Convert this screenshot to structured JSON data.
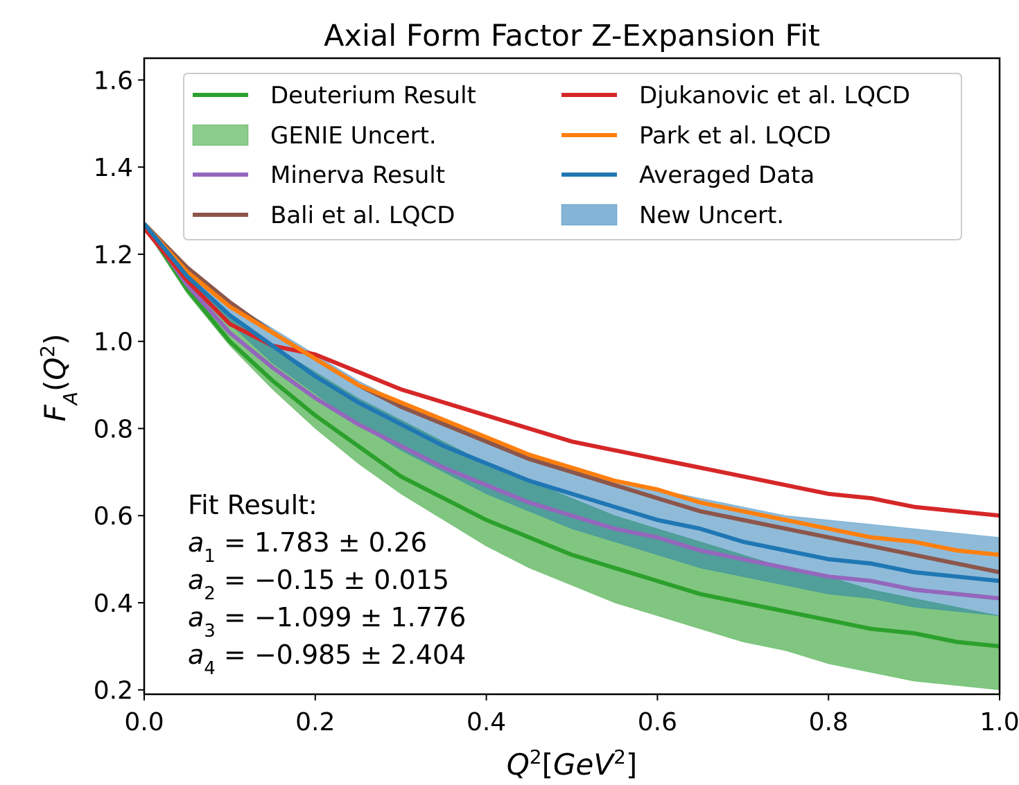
{
  "chart_data": {
    "type": "line",
    "title": "Axial Form Factor Z-Expansion Fit",
    "xlabel": {
      "base": "Q",
      "sup": "2",
      "bracket_open": "[",
      "unit_base": "GeV",
      "unit_sup": "2",
      "bracket_close": "]"
    },
    "ylabel": {
      "base": "F",
      "sub": "A",
      "open": "(",
      "arg": "Q",
      "sup": "2",
      "close": ")"
    },
    "xlim": [
      0.0,
      1.0
    ],
    "ylim": [
      0.19,
      1.65
    ],
    "xticks": [
      0.0,
      0.2,
      0.4,
      0.6,
      0.8,
      1.0
    ],
    "xtick_labels": [
      "0.0",
      "0.2",
      "0.4",
      "0.6",
      "0.8",
      "1.0"
    ],
    "yticks": [
      0.2,
      0.4,
      0.6,
      0.8,
      1.0,
      1.2,
      1.4,
      1.6
    ],
    "ytick_labels": [
      "0.2",
      "0.4",
      "0.6",
      "0.8",
      "1.0",
      "1.2",
      "1.4",
      "1.6"
    ],
    "grid": false,
    "legend_position": "top",
    "x": [
      0.0,
      0.05,
      0.1,
      0.15,
      0.2,
      0.25,
      0.3,
      0.35,
      0.4,
      0.45,
      0.5,
      0.55,
      0.6,
      0.65,
      0.7,
      0.75,
      0.8,
      0.85,
      0.9,
      0.95,
      1.0
    ],
    "bands": [
      {
        "name": "GENIE Uncert.",
        "color": "#2ca02c",
        "opacity": 0.6,
        "upper": [
          1.27,
          1.14,
          1.06,
          0.99,
          0.93,
          0.87,
          0.82,
          0.77,
          0.72,
          0.68,
          0.64,
          0.6,
          0.57,
          0.54,
          0.51,
          0.48,
          0.46,
          0.43,
          0.41,
          0.39,
          0.37
        ],
        "lower": [
          1.26,
          1.11,
          0.99,
          0.89,
          0.8,
          0.72,
          0.65,
          0.59,
          0.53,
          0.48,
          0.44,
          0.4,
          0.37,
          0.34,
          0.31,
          0.29,
          0.26,
          0.24,
          0.22,
          0.21,
          0.2
        ]
      },
      {
        "name": "New Uncert.",
        "color": "#1f77b4",
        "opacity": 0.5,
        "upper": [
          1.27,
          1.17,
          1.09,
          1.03,
          0.97,
          0.91,
          0.86,
          0.82,
          0.78,
          0.74,
          0.71,
          0.68,
          0.66,
          0.64,
          0.62,
          0.6,
          0.59,
          0.58,
          0.57,
          0.56,
          0.55
        ],
        "lower": [
          1.27,
          1.14,
          1.04,
          0.95,
          0.88,
          0.81,
          0.75,
          0.7,
          0.65,
          0.61,
          0.57,
          0.54,
          0.51,
          0.48,
          0.46,
          0.44,
          0.42,
          0.41,
          0.39,
          0.38,
          0.37
        ]
      }
    ],
    "series": [
      {
        "name": "Deuterium Result",
        "color": "#2ca02c",
        "values": [
          1.27,
          1.12,
          1.0,
          0.91,
          0.83,
          0.76,
          0.69,
          0.64,
          0.59,
          0.55,
          0.51,
          0.48,
          0.45,
          0.42,
          0.4,
          0.38,
          0.36,
          0.34,
          0.33,
          0.31,
          0.3
        ]
      },
      {
        "name": "Minerva Result",
        "color": "#9467bd",
        "values": [
          1.27,
          1.13,
          1.02,
          0.94,
          0.87,
          0.81,
          0.76,
          0.71,
          0.67,
          0.63,
          0.6,
          0.57,
          0.55,
          0.52,
          0.5,
          0.48,
          0.46,
          0.45,
          0.43,
          0.42,
          0.41
        ]
      },
      {
        "name": "Bali et al. LQCD",
        "color": "#8c564b",
        "values": [
          1.27,
          1.17,
          1.09,
          1.02,
          0.96,
          0.9,
          0.85,
          0.81,
          0.77,
          0.73,
          0.7,
          0.67,
          0.64,
          0.61,
          0.59,
          0.57,
          0.55,
          0.53,
          0.51,
          0.49,
          0.47
        ]
      },
      {
        "name": "Djukanovic et al. LQCD",
        "color": "#d62728",
        "values": [
          1.26,
          1.14,
          1.04,
          0.99,
          0.97,
          0.93,
          0.89,
          0.86,
          0.83,
          0.8,
          0.77,
          0.75,
          0.73,
          0.71,
          0.69,
          0.67,
          0.65,
          0.64,
          0.62,
          0.61,
          0.6
        ]
      },
      {
        "name": "Park et al. LQCD",
        "color": "#ff7f0e",
        "values": [
          1.27,
          1.16,
          1.08,
          1.02,
          0.96,
          0.9,
          0.86,
          0.82,
          0.78,
          0.74,
          0.71,
          0.68,
          0.66,
          0.63,
          0.61,
          0.59,
          0.57,
          0.55,
          0.54,
          0.52,
          0.51
        ]
      },
      {
        "name": "Averaged Data",
        "color": "#1f77b4",
        "values": [
          1.27,
          1.15,
          1.06,
          0.99,
          0.92,
          0.86,
          0.81,
          0.76,
          0.72,
          0.68,
          0.65,
          0.62,
          0.59,
          0.57,
          0.54,
          0.52,
          0.5,
          0.49,
          0.47,
          0.46,
          0.45
        ]
      }
    ],
    "legend": {
      "columns": 2,
      "entries": [
        {
          "label": "Deuterium Result",
          "kind": "line",
          "color": "#2ca02c"
        },
        {
          "label": "GENIE Uncert.",
          "kind": "patch",
          "color": "#2ca02c"
        },
        {
          "label": "Minerva Result",
          "kind": "line",
          "color": "#9467bd"
        },
        {
          "label": "Bali et al. LQCD",
          "kind": "line",
          "color": "#8c564b"
        },
        {
          "label": "Djukanovic et al. LQCD",
          "kind": "line",
          "color": "#d62728"
        },
        {
          "label": "Park et al. LQCD",
          "kind": "line",
          "color": "#ff7f0e"
        },
        {
          "label": "Averaged Data",
          "kind": "line",
          "color": "#1f77b4"
        },
        {
          "label": "New Uncert.",
          "kind": "patch",
          "color": "#1f77b4"
        }
      ]
    },
    "annotation": {
      "heading": "Fit Result:",
      "params": [
        {
          "sym": "a",
          "sub": "1",
          "eq": " = ",
          "value": "1.783",
          "pm": " ± ",
          "err": "0.26"
        },
        {
          "sym": "a",
          "sub": "2",
          "eq": " = ",
          "value": "−0.15",
          "pm": " ± ",
          "err": "0.015"
        },
        {
          "sym": "a",
          "sub": "3",
          "eq": " = ",
          "value": "−1.099",
          "pm": " ± ",
          "err": "1.776"
        },
        {
          "sym": "a",
          "sub": "4",
          "eq": " = ",
          "value": "−0.985",
          "pm": " ± ",
          "err": "2.404"
        }
      ]
    }
  }
}
